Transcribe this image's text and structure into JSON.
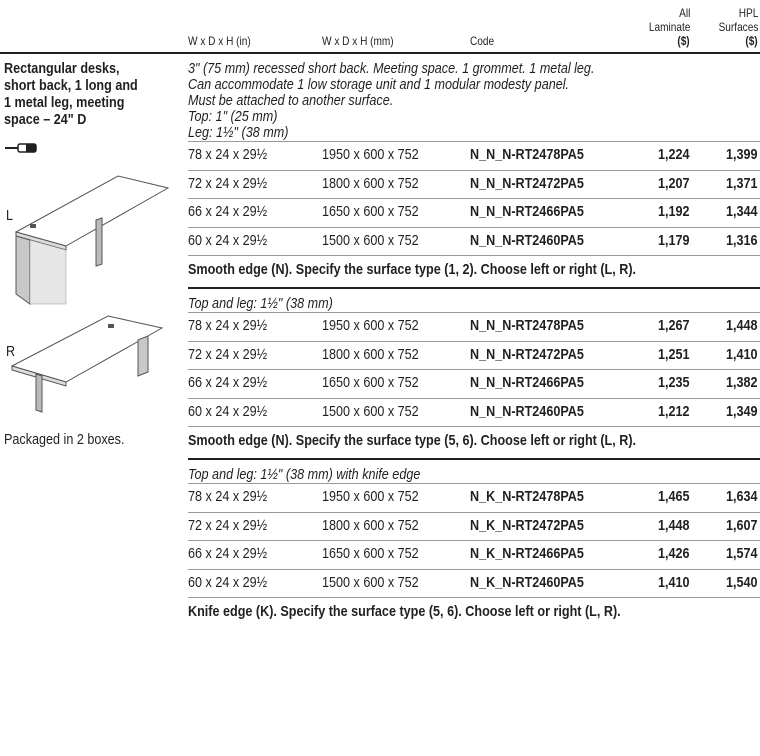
{
  "header": {
    "columns": [
      {
        "lines": [
          "W x D x H (in)"
        ]
      },
      {
        "lines": [
          "W x D x H (mm)"
        ]
      },
      {
        "lines": [
          "Code"
        ]
      },
      {
        "lines": [
          "All",
          "Laminate",
          "($)"
        ]
      },
      {
        "lines": [
          "HPL",
          "Surfaces",
          "($)"
        ]
      }
    ]
  },
  "sidebar": {
    "title_lines": [
      "Rectangular desks,",
      "short back, 1 long and",
      "1 metal leg, meeting",
      "space – 24\" D"
    ],
    "left_label": "L",
    "right_label": "R",
    "packaging": "Packaged in 2 boxes."
  },
  "sections": [
    {
      "notes": [
        "3\" (75 mm) recessed short back. Meeting space. 1 grommet. 1 metal leg.",
        "Can accommodate 1 low storage unit and 1 modular modesty panel.",
        "Must be attached to another surface.",
        "Top: 1\" (25 mm)",
        "Leg: 1½\" (38 mm)"
      ],
      "rows": [
        [
          "78 x 24 x 29½",
          "1950 x 600 x 752",
          "N_N_N-RT2478PA5",
          "1,224",
          "1,399"
        ],
        [
          "72 x 24 x 29½",
          "1800 x 600 x 752",
          "N_N_N-RT2472PA5",
          "1,207",
          "1,371"
        ],
        [
          "66 x 24 x 29½",
          "1650 x 600 x 752",
          "N_N_N-RT2466PA5",
          "1,192",
          "1,344"
        ],
        [
          "60 x 24 x 29½",
          "1500 x 600 x 752",
          "N_N_N-RT2460PA5",
          "1,179",
          "1,316"
        ]
      ],
      "footer": "Smooth edge (N). Specify the surface type (1, 2). Choose left or right (L, R)."
    },
    {
      "notes": [
        "Top and leg: 1½\" (38 mm)"
      ],
      "rows": [
        [
          "78 x 24 x 29½",
          "1950 x 600 x 752",
          "N_N_N-RT2478PA5",
          "1,267",
          "1,448"
        ],
        [
          "72 x 24 x 29½",
          "1800 x 600 x 752",
          "N_N_N-RT2472PA5",
          "1,251",
          "1,410"
        ],
        [
          "66 x 24 x 29½",
          "1650 x 600 x 752",
          "N_N_N-RT2466PA5",
          "1,235",
          "1,382"
        ],
        [
          "60 x 24 x 29½",
          "1500 x 600 x 752",
          "N_N_N-RT2460PA5",
          "1,212",
          "1,349"
        ]
      ],
      "footer": "Smooth edge (N). Specify the surface type (5, 6). Choose left or right (L, R)."
    },
    {
      "notes": [
        "Top and leg: 1½\" (38 mm) with knife edge"
      ],
      "rows": [
        [
          "78 x 24 x 29½",
          "1950 x 600 x 752",
          "N_K_N-RT2478PA5",
          "1,465",
          "1,634"
        ],
        [
          "72 x 24 x 29½",
          "1800 x 600 x 752",
          "N_K_N-RT2472PA5",
          "1,448",
          "1,607"
        ],
        [
          "66 x 24 x 29½",
          "1650 x 600 x 752",
          "N_K_N-RT2466PA5",
          "1,426",
          "1,574"
        ],
        [
          "60 x 24 x 29½",
          "1500 x 600 x 752",
          "N_K_N-RT2460PA5",
          "1,410",
          "1,540"
        ]
      ],
      "footer": "Knife edge (K). Specify the surface type (5, 6). Choose left or right (L, R)."
    }
  ]
}
